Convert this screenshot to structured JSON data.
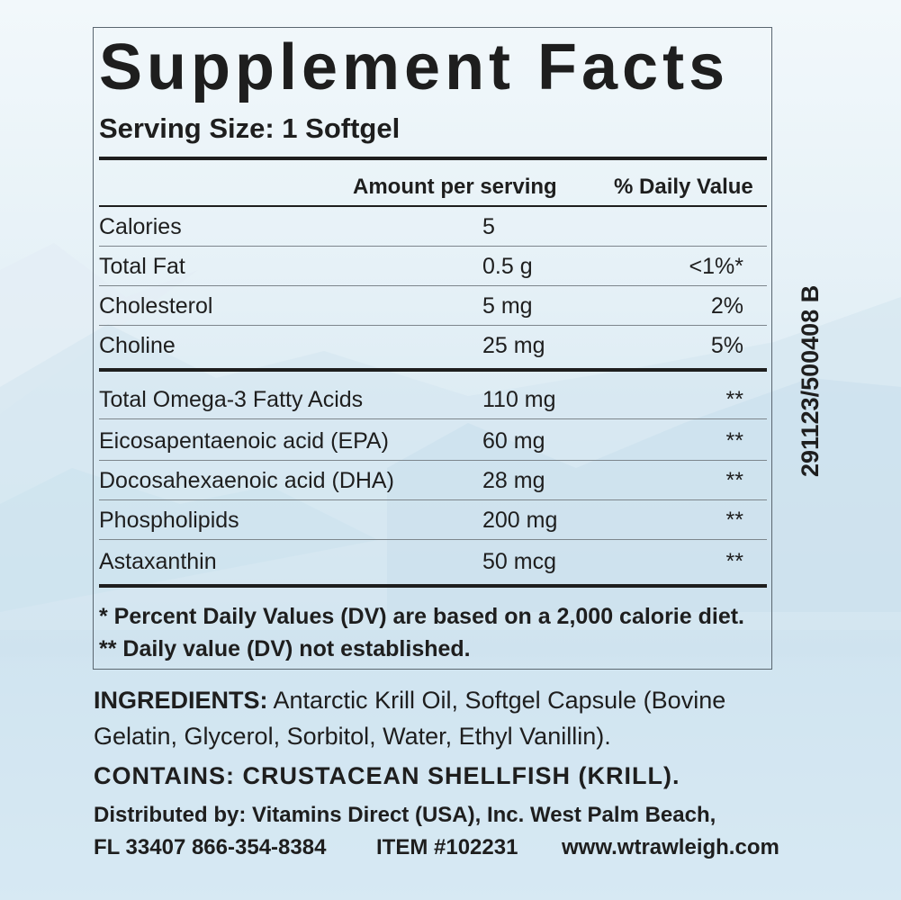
{
  "label": {
    "title": "Supplement Facts",
    "serving_size": "Serving Size: 1 Softgel",
    "columns": {
      "amount": "Amount per serving",
      "daily_value": "% Daily Value"
    },
    "rows_group1": [
      {
        "name": "Calories",
        "amount": "5",
        "dv": ""
      },
      {
        "name": "Total Fat",
        "amount": "0.5 g",
        "dv": "<1%*"
      },
      {
        "name": "Cholesterol",
        "amount": "5 mg",
        "dv": "2%"
      },
      {
        "name": "Choline",
        "amount": "25 mg",
        "dv": "5%"
      }
    ],
    "rows_group2": [
      {
        "name": "Total Omega-3 Fatty Acids",
        "amount": "110 mg",
        "dv": "**"
      },
      {
        "name": "Eicosapentaenoic acid (EPA)",
        "amount": "60 mg",
        "dv": "**"
      },
      {
        "name": "Docosahexaenoic acid (DHA)",
        "amount": "28 mg",
        "dv": "**"
      },
      {
        "name": "Phospholipids",
        "amount": "200 mg",
        "dv": "**"
      },
      {
        "name": "Astaxanthin",
        "amount": "50 mcg",
        "dv": "**"
      }
    ],
    "footnote1": "* Percent Daily Values (DV) are based on a 2,000 calorie diet.",
    "footnote2": "** Daily value (DV) not established."
  },
  "lot_code": "291123/500408 B",
  "ingredients": {
    "label": "INGREDIENTS:",
    "line1_text": " Antarctic Krill Oil, Softgel Capsule (Bovine",
    "line2_text": "Gelatin, Glycerol, Sorbitol, Water, Ethyl Vanillin)."
  },
  "contains": "CONTAINS: CRUSTACEAN SHELLFISH (KRILL).",
  "distributor": {
    "line1": "Distributed by:  Vitamins Direct (USA), Inc. West Palm Beach,",
    "address": "FL 33407 866-354-8384",
    "item": "ITEM #102231",
    "website": "www.wtrawleigh.com"
  },
  "colors": {
    "text": "#1e1e1e",
    "sky": "#e6f1f7",
    "ice": "#cfe3ef"
  }
}
